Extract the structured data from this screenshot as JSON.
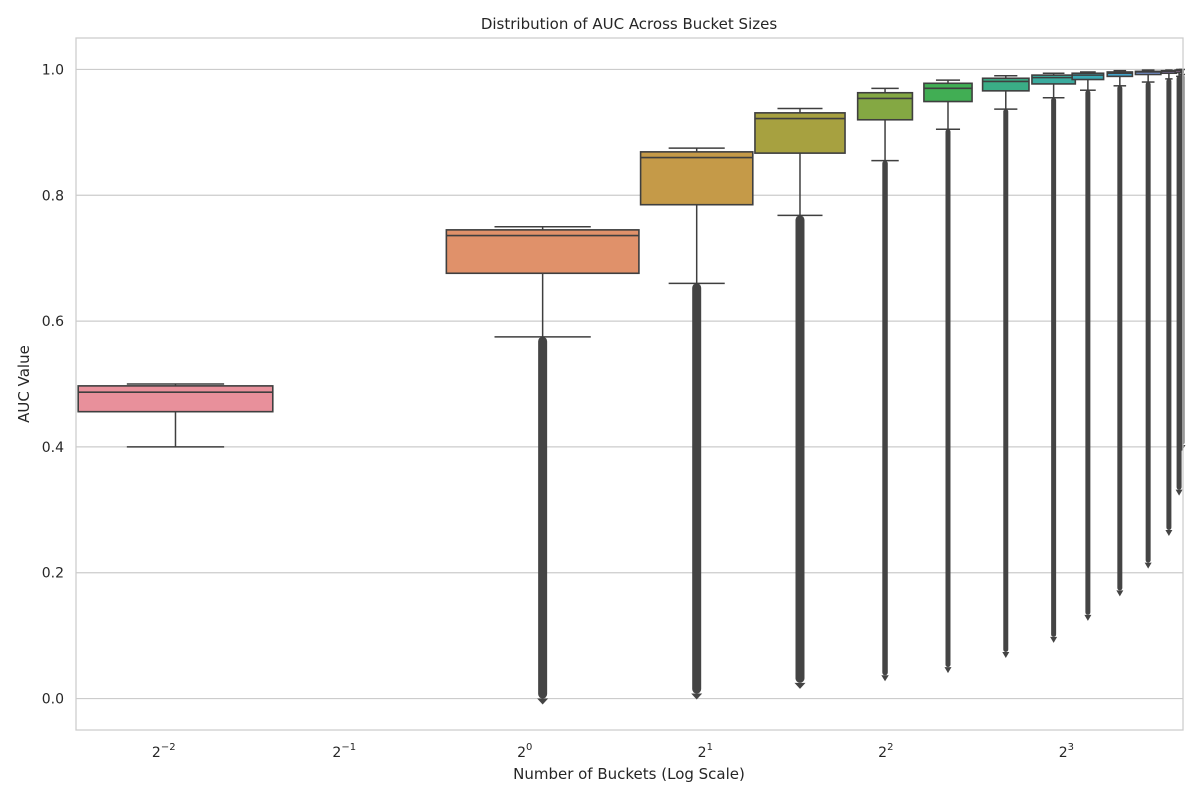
{
  "chart_data": {
    "type": "box",
    "title": "Distribution of AUC Across Bucket Sizes",
    "xlabel": "Number of Buckets (Log Scale)",
    "ylabel": "AUC Value",
    "x_scale": "log2",
    "xlim": [
      0.1785,
      12.52
    ],
    "ylim": [
      -0.05,
      1.05
    ],
    "grid": true,
    "x_ticks": [
      {
        "value": 0.25,
        "base": "2",
        "exp": "−2"
      },
      {
        "value": 0.5,
        "base": "2",
        "exp": "−1"
      },
      {
        "value": 1,
        "base": "2",
        "exp": "0"
      },
      {
        "value": 2,
        "base": "2",
        "exp": "1"
      },
      {
        "value": 4,
        "base": "2",
        "exp": "2"
      },
      {
        "value": 8,
        "base": "2",
        "exp": "3"
      }
    ],
    "y_ticks": [
      {
        "value": 0.0,
        "label": "0.0"
      },
      {
        "value": 0.2,
        "label": "0.2"
      },
      {
        "value": 0.4,
        "label": "0.4"
      },
      {
        "value": 0.6,
        "label": "0.6"
      },
      {
        "value": 0.8,
        "label": "0.8"
      },
      {
        "value": 1.0,
        "label": "1.0"
      }
    ],
    "boxes": [
      {
        "x_left": 0.18,
        "x_right": 0.38,
        "color": "#e8909b",
        "whisker_low": 0.4,
        "q1": 0.456,
        "median": 0.487,
        "q3": 0.497,
        "whisker_high": 0.5,
        "outlier_low": null
      },
      {
        "x_left": 0.74,
        "x_right": 1.55,
        "color": "#e0916a",
        "whisker_low": 0.575,
        "q1": 0.676,
        "median": 0.736,
        "q3": 0.745,
        "whisker_high": 0.75,
        "outlier_low": 0.0
      },
      {
        "x_left": 1.56,
        "x_right": 2.4,
        "color": "#c59a48",
        "whisker_low": 0.66,
        "q1": 0.785,
        "median": 0.86,
        "q3": 0.869,
        "whisker_high": 0.875,
        "outlier_low": 0.008
      },
      {
        "x_left": 2.42,
        "x_right": 3.42,
        "color": "#a7a140",
        "whisker_low": 0.768,
        "q1": 0.867,
        "median": 0.922,
        "q3": 0.931,
        "whisker_high": 0.938,
        "outlier_low": 0.025
      },
      {
        "x_left": 3.59,
        "x_right": 4.43,
        "color": "#84a843",
        "whisker_low": 0.855,
        "q1": 0.92,
        "median": 0.954,
        "q3": 0.963,
        "whisker_high": 0.97,
        "outlier_low": 0.037
      },
      {
        "x_left": 4.63,
        "x_right": 5.57,
        "color": "#41ae54",
        "whisker_low": 0.905,
        "q1": 0.949,
        "median": 0.97,
        "q3": 0.978,
        "whisker_high": 0.983,
        "outlier_low": 0.05
      },
      {
        "x_left": 5.8,
        "x_right": 6.93,
        "color": "#3aad86",
        "whisker_low": 0.937,
        "q1": 0.966,
        "median": 0.981,
        "q3": 0.986,
        "whisker_high": 0.99,
        "outlier_low": 0.074
      },
      {
        "x_left": 7.01,
        "x_right": 8.28,
        "color": "#3aab9e",
        "whisker_low": 0.955,
        "q1": 0.977,
        "median": 0.987,
        "q3": 0.991,
        "whisker_high": 0.994,
        "outlier_low": 0.098
      },
      {
        "x_left": 8.18,
        "x_right": 9.23,
        "color": "#3aa9b4",
        "whisker_low": 0.967,
        "q1": 0.984,
        "median": 0.991,
        "q3": 0.994,
        "whisker_high": 0.996,
        "outlier_low": 0.133
      },
      {
        "x_left": 9.36,
        "x_right": 10.31,
        "color": "#42a2c9",
        "whisker_low": 0.974,
        "q1": 0.989,
        "median": 0.994,
        "q3": 0.996,
        "whisker_high": 0.998,
        "outlier_low": 0.172
      },
      {
        "x_left": 10.43,
        "x_right": 11.5,
        "color": "#7b9ee3",
        "whisker_low": 0.98,
        "q1": 0.992,
        "median": 0.996,
        "q3": 0.997,
        "whisker_high": 0.999,
        "outlier_low": 0.216
      },
      {
        "x_left": 11.53,
        "x_right": 12.2,
        "color": "#b295ea",
        "whisker_low": 0.985,
        "q1": 0.994,
        "median": 0.997,
        "q3": 0.998,
        "whisker_high": 0.999,
        "outlier_low": 0.268
      },
      {
        "x_left": 12.15,
        "x_right": 12.52,
        "color": "#dc8ee0",
        "whisker_low": 0.989,
        "q1": 0.995,
        "median": 0.998,
        "q3": 0.999,
        "whisker_high": 1.0,
        "outlier_low": 0.332
      },
      {
        "x_left": 12.42,
        "x_right": 12.52,
        "color": "#f18fc6",
        "whisker_low": 0.992,
        "q1": 0.996,
        "median": 0.998,
        "q3": 0.999,
        "whisker_high": 1.0,
        "outlier_low": 0.403
      }
    ]
  }
}
